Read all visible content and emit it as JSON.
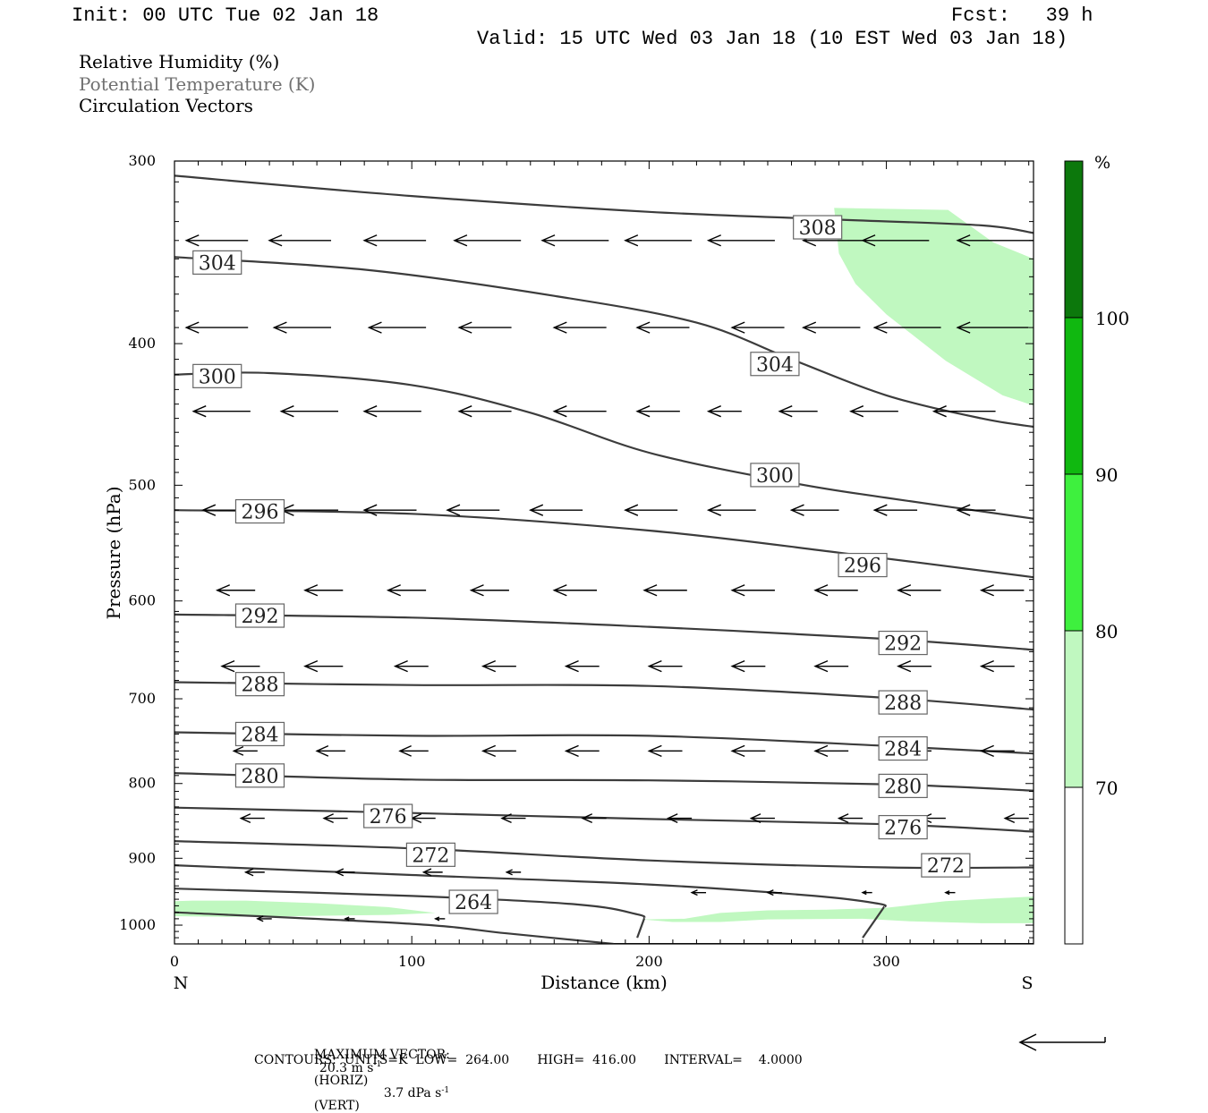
{
  "header": {
    "init": "Init: 00 UTC Tue 02 Jan 18",
    "fcst": "Fcst:   39 h",
    "valid": "Valid: 15 UTC Wed 03 Jan 18 (10 EST Wed 03 Jan 18)"
  },
  "legend": {
    "line1": "Relative Humidity (%)",
    "line2": "Potential Temperature (K)",
    "line3": "Circulation Vectors"
  },
  "footer": {
    "max_vector_label": "MAXIMUM VECTOR:",
    "max_horiz": "20.3 m s",
    "max_horiz_sup": "-1",
    "max_horiz_tag": "(HORIZ)",
    "max_vert": "3.7 dPa s",
    "max_vert_sup": "-1",
    "max_vert_tag": "(VERT)",
    "contours": "CONTOURS:  UNITS=K  LOW=  264.00       HIGH=  416.00       INTERVAL=    4.0000"
  },
  "colors": {
    "rh_70": "#c0f8c0",
    "rh_80": "#3ef03e",
    "rh_90": "#10b810",
    "rh_100": "#0c780c",
    "theta": "#3c3c3c",
    "vector": "#000000"
  },
  "chart_data": {
    "type": "cross-section",
    "xlabel": "Distance (km)",
    "ylabel": "Pressure (hPa)",
    "x_endpoint_left": "N",
    "x_endpoint_right": "S",
    "xlim": [
      0,
      362
    ],
    "ylim": [
      300,
      1030
    ],
    "y_log": true,
    "x_ticks": [
      0,
      100,
      200,
      300
    ],
    "y_ticks": [
      300,
      400,
      500,
      600,
      700,
      800,
      900,
      1000
    ],
    "colorbar": {
      "unit": "%",
      "levels": [
        70,
        80,
        90,
        100
      ],
      "colors": [
        "#ffffff",
        "#c0f8c0",
        "#3ef03e",
        "#10b810",
        "#0c780c"
      ]
    },
    "rh_regions": [
      {
        "level": 70,
        "points": [
          [
            278,
            323
          ],
          [
            326,
            324
          ],
          [
            345,
            341
          ],
          [
            362,
            350
          ],
          [
            362,
            441
          ],
          [
            349,
            434
          ],
          [
            325,
            411
          ],
          [
            300,
            382
          ],
          [
            287,
            364
          ],
          [
            280,
            347
          ]
        ]
      },
      {
        "level": 70,
        "points": [
          [
            0,
            963
          ],
          [
            8,
            962
          ],
          [
            30,
            962
          ],
          [
            60,
            966
          ],
          [
            90,
            972
          ],
          [
            110,
            981
          ],
          [
            90,
            984
          ],
          [
            50,
            986
          ],
          [
            20,
            987
          ],
          [
            0,
            986
          ]
        ]
      },
      {
        "level": 70,
        "points": [
          [
            197,
            991
          ],
          [
            215,
            990
          ],
          [
            230,
            981
          ],
          [
            250,
            977
          ],
          [
            275,
            976
          ],
          [
            300,
            973
          ],
          [
            325,
            963
          ],
          [
            345,
            959
          ],
          [
            362,
            956
          ],
          [
            362,
            997
          ],
          [
            340,
            997
          ],
          [
            310,
            994
          ],
          [
            290,
            990
          ],
          [
            250,
            991
          ],
          [
            230,
            995
          ],
          [
            210,
            995
          ]
        ]
      }
    ],
    "theta_contours": [
      {
        "label": "308",
        "points": [
          [
            0,
            307
          ],
          [
            100,
            317
          ],
          [
            200,
            325
          ],
          [
            280,
            329
          ],
          [
            340,
            332
          ],
          [
            362,
            336
          ]
        ],
        "labels_at": [
          [
            271,
            333
          ]
        ]
      },
      {
        "label": "304",
        "points": [
          [
            0,
            349
          ],
          [
            80,
            356
          ],
          [
            160,
            371
          ],
          [
            220,
            387
          ],
          [
            260,
            410
          ],
          [
            300,
            434
          ],
          [
            340,
            450
          ],
          [
            362,
            456
          ]
        ],
        "labels_at": [
          [
            18,
            352
          ],
          [
            253,
            413
          ]
        ]
      },
      {
        "label": "300",
        "points": [
          [
            0,
            420
          ],
          [
            40,
            419
          ],
          [
            100,
            427
          ],
          [
            150,
            446
          ],
          [
            200,
            475
          ],
          [
            260,
            498
          ],
          [
            300,
            510
          ],
          [
            362,
            527
          ]
        ],
        "labels_at": [
          [
            18,
            421
          ],
          [
            253,
            492
          ]
        ]
      },
      {
        "label": "296",
        "points": [
          [
            0,
            520
          ],
          [
            100,
            523
          ],
          [
            200,
            537
          ],
          [
            280,
            556
          ],
          [
            362,
            578
          ]
        ],
        "labels_at": [
          [
            36,
            521
          ],
          [
            290,
            567
          ]
        ]
      },
      {
        "label": "292",
        "points": [
          [
            0,
            613
          ],
          [
            100,
            616
          ],
          [
            200,
            625
          ],
          [
            300,
            637
          ],
          [
            362,
            648
          ]
        ],
        "labels_at": [
          [
            36,
            614
          ],
          [
            307,
            641
          ]
        ]
      },
      {
        "label": "288",
        "points": [
          [
            0,
            682
          ],
          [
            100,
            685
          ],
          [
            200,
            686
          ],
          [
            300,
            699
          ],
          [
            362,
            712
          ]
        ],
        "labels_at": [
          [
            36,
            684
          ],
          [
            307,
            704
          ]
        ]
      },
      {
        "label": "284",
        "points": [
          [
            0,
            738
          ],
          [
            100,
            742
          ],
          [
            200,
            742
          ],
          [
            300,
            754
          ],
          [
            362,
            763
          ]
        ],
        "labels_at": [
          [
            36,
            740
          ],
          [
            307,
            757
          ]
        ]
      },
      {
        "label": "280",
        "points": [
          [
            0,
            787
          ],
          [
            100,
            795
          ],
          [
            200,
            796
          ],
          [
            300,
            801
          ],
          [
            362,
            809
          ]
        ],
        "labels_at": [
          [
            36,
            790
          ],
          [
            307,
            803
          ]
        ]
      },
      {
        "label": "276",
        "points": [
          [
            0,
            831
          ],
          [
            100,
            838
          ],
          [
            200,
            846
          ],
          [
            300,
            853
          ],
          [
            362,
            863
          ]
        ],
        "labels_at": [
          [
            90,
            842
          ],
          [
            307,
            857
          ]
        ]
      },
      {
        "label": "272",
        "points": [
          [
            0,
            876
          ],
          [
            100,
            886
          ],
          [
            200,
            903
          ],
          [
            300,
            913
          ],
          [
            362,
            913
          ]
        ],
        "labels_at": [
          [
            108,
            895
          ],
          [
            325,
            910
          ]
        ]
      },
      {
        "label": "",
        "points": [
          [
            0,
            910
          ],
          [
            100,
            924
          ],
          [
            200,
            938
          ],
          [
            270,
            955
          ],
          [
            297,
            967
          ],
          [
            299,
            972
          ]
        ],
        "labels_at": []
      },
      {
        "label": "264",
        "points": [
          [
            0,
            944
          ],
          [
            100,
            955
          ],
          [
            170,
            968
          ],
          [
            195,
            983
          ],
          [
            198,
            989
          ]
        ],
        "labels_at": [
          [
            126,
            964
          ]
        ]
      },
      {
        "label": "",
        "points": [
          [
            0,
            980
          ],
          [
            100,
            998
          ],
          [
            140,
            1013
          ],
          [
            185,
            1030
          ]
        ],
        "labels_at": []
      },
      {
        "label": "",
        "points": [
          [
            198,
            989
          ],
          [
            195,
            1020
          ]
        ],
        "labels_at": []
      },
      {
        "label": "",
        "points": [
          [
            299,
            972
          ],
          [
            290,
            1020
          ]
        ],
        "labels_at": []
      }
    ],
    "terrain_pressure": 1030,
    "vectors": [
      {
        "x": 5,
        "p": 340,
        "len": 26
      },
      {
        "x": 40,
        "p": 340,
        "len": 26
      },
      {
        "x": 80,
        "p": 340,
        "len": 26
      },
      {
        "x": 118,
        "p": 340,
        "len": 28
      },
      {
        "x": 155,
        "p": 340,
        "len": 28
      },
      {
        "x": 190,
        "p": 340,
        "len": 28
      },
      {
        "x": 225,
        "p": 340,
        "len": 28
      },
      {
        "x": 265,
        "p": 340,
        "len": 28
      },
      {
        "x": 290,
        "p": 340,
        "len": 28
      },
      {
        "x": 330,
        "p": 340,
        "len": 32
      },
      {
        "x": 5,
        "p": 390,
        "len": 26
      },
      {
        "x": 42,
        "p": 390,
        "len": 24
      },
      {
        "x": 82,
        "p": 390,
        "len": 24
      },
      {
        "x": 120,
        "p": 390,
        "len": 22
      },
      {
        "x": 160,
        "p": 390,
        "len": 22
      },
      {
        "x": 195,
        "p": 390,
        "len": 22
      },
      {
        "x": 235,
        "p": 390,
        "len": 22
      },
      {
        "x": 265,
        "p": 390,
        "len": 24
      },
      {
        "x": 295,
        "p": 390,
        "len": 28
      },
      {
        "x": 330,
        "p": 390,
        "len": 30
      },
      {
        "x": 8,
        "p": 445,
        "len": 24
      },
      {
        "x": 45,
        "p": 445,
        "len": 24
      },
      {
        "x": 80,
        "p": 445,
        "len": 24
      },
      {
        "x": 120,
        "p": 445,
        "len": 22
      },
      {
        "x": 160,
        "p": 445,
        "len": 22
      },
      {
        "x": 195,
        "p": 445,
        "len": 18
      },
      {
        "x": 225,
        "p": 445,
        "len": 14
      },
      {
        "x": 255,
        "p": 445,
        "len": 16
      },
      {
        "x": 285,
        "p": 445,
        "len": 20
      },
      {
        "x": 320,
        "p": 445,
        "len": 26
      },
      {
        "x": 12,
        "p": 520,
        "len": 22
      },
      {
        "x": 45,
        "p": 520,
        "len": 24
      },
      {
        "x": 80,
        "p": 520,
        "len": 22
      },
      {
        "x": 115,
        "p": 520,
        "len": 22
      },
      {
        "x": 150,
        "p": 520,
        "len": 22
      },
      {
        "x": 190,
        "p": 520,
        "len": 22
      },
      {
        "x": 225,
        "p": 520,
        "len": 20
      },
      {
        "x": 260,
        "p": 520,
        "len": 20
      },
      {
        "x": 295,
        "p": 520,
        "len": 18
      },
      {
        "x": 330,
        "p": 520,
        "len": 16
      },
      {
        "x": 18,
        "p": 590,
        "len": 16
      },
      {
        "x": 55,
        "p": 590,
        "len": 16
      },
      {
        "x": 90,
        "p": 590,
        "len": 16
      },
      {
        "x": 125,
        "p": 590,
        "len": 16
      },
      {
        "x": 160,
        "p": 590,
        "len": 18
      },
      {
        "x": 198,
        "p": 590,
        "len": 18
      },
      {
        "x": 235,
        "p": 590,
        "len": 18
      },
      {
        "x": 270,
        "p": 590,
        "len": 18
      },
      {
        "x": 305,
        "p": 590,
        "len": 18
      },
      {
        "x": 340,
        "p": 590,
        "len": 18
      },
      {
        "x": 20,
        "p": 665,
        "len": 16
      },
      {
        "x": 55,
        "p": 665,
        "len": 16
      },
      {
        "x": 93,
        "p": 665,
        "len": 14
      },
      {
        "x": 130,
        "p": 665,
        "len": 14
      },
      {
        "x": 165,
        "p": 665,
        "len": 14
      },
      {
        "x": 200,
        "p": 665,
        "len": 14
      },
      {
        "x": 235,
        "p": 665,
        "len": 14
      },
      {
        "x": 270,
        "p": 665,
        "len": 14
      },
      {
        "x": 305,
        "p": 665,
        "len": 14
      },
      {
        "x": 340,
        "p": 665,
        "len": 14
      },
      {
        "x": 25,
        "p": 760,
        "len": 10
      },
      {
        "x": 60,
        "p": 760,
        "len": 12
      },
      {
        "x": 95,
        "p": 760,
        "len": 12
      },
      {
        "x": 130,
        "p": 760,
        "len": 14
      },
      {
        "x": 165,
        "p": 760,
        "len": 14
      },
      {
        "x": 200,
        "p": 760,
        "len": 14
      },
      {
        "x": 235,
        "p": 760,
        "len": 14
      },
      {
        "x": 270,
        "p": 760,
        "len": 14
      },
      {
        "x": 305,
        "p": 760,
        "len": 14
      },
      {
        "x": 340,
        "p": 760,
        "len": 14
      },
      {
        "x": 28,
        "p": 845,
        "len": 10
      },
      {
        "x": 63,
        "p": 845,
        "len": 10
      },
      {
        "x": 100,
        "p": 845,
        "len": 10
      },
      {
        "x": 138,
        "p": 845,
        "len": 10
      },
      {
        "x": 172,
        "p": 845,
        "len": 10
      },
      {
        "x": 208,
        "p": 845,
        "len": 10
      },
      {
        "x": 243,
        "p": 845,
        "len": 10
      },
      {
        "x": 280,
        "p": 845,
        "len": 10
      },
      {
        "x": 315,
        "p": 845,
        "len": 10
      },
      {
        "x": 350,
        "p": 845,
        "len": 10
      },
      {
        "x": 30,
        "p": 920,
        "len": 8
      },
      {
        "x": 68,
        "p": 920,
        "len": 8
      },
      {
        "x": 105,
        "p": 920,
        "len": 8
      },
      {
        "x": 140,
        "p": 920,
        "len": 6
      },
      {
        "x": 218,
        "p": 950,
        "len": 6
      },
      {
        "x": 250,
        "p": 950,
        "len": 6
      },
      {
        "x": 290,
        "p": 950,
        "len": 4
      },
      {
        "x": 325,
        "p": 950,
        "len": 4
      },
      {
        "x": 35,
        "p": 990,
        "len": 6
      },
      {
        "x": 72,
        "p": 990,
        "len": 4
      },
      {
        "x": 110,
        "p": 990,
        "len": 4
      }
    ]
  }
}
